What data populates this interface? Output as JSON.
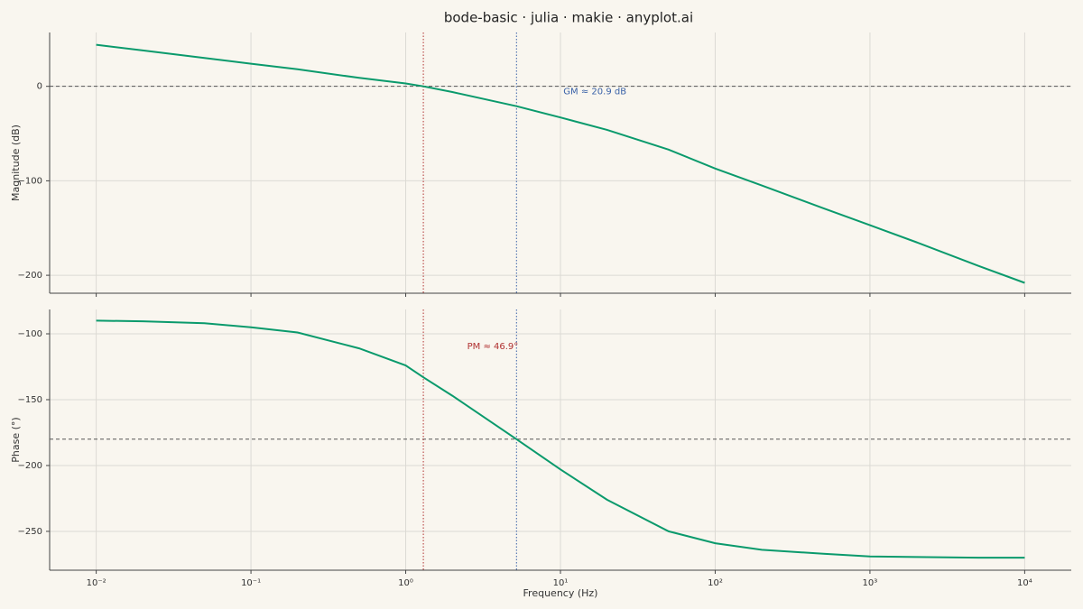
{
  "title": "bode-basic · julia · makie · anyplot.ai",
  "chart_data": [
    {
      "type": "line",
      "ylabel": "Magnitude (dB)",
      "log_x": true,
      "grid": true,
      "x": [
        0.01,
        0.02,
        0.05,
        0.1,
        0.2,
        0.5,
        1,
        1.3,
        2,
        5.2,
        10,
        20,
        50,
        100,
        200,
        500,
        1000,
        2000,
        5000,
        10000
      ],
      "series": [
        {
          "name": "Magnitude",
          "color": "#0a9a6c",
          "values": [
            44,
            38,
            30,
            24,
            18,
            9,
            3,
            0,
            -6,
            -21,
            -33,
            -46,
            -67,
            -87,
            -105,
            -129,
            -147,
            -165,
            -190,
            -208
          ]
        }
      ],
      "xlim": [
        0.005,
        20000
      ],
      "xticks": [
        0.01,
        0.1,
        1,
        10,
        100,
        1000,
        10000
      ],
      "ylim": [
        -219,
        57
      ],
      "yticks": [
        {
          "value": -200,
          "label": "−200"
        },
        {
          "value": -100,
          "label": "−100"
        },
        0
      ],
      "hline": {
        "value": 0,
        "color": "#555555"
      },
      "vlines": [
        {
          "x": 1.3,
          "color": "#b03030"
        },
        {
          "x": 5.2,
          "color": "#3a62a8"
        }
      ],
      "annotation": {
        "text": "GM ≈ 20.9 dB",
        "color": "#3a62a8"
      }
    },
    {
      "type": "line",
      "ylabel": "Phase (°)",
      "xlabel": "Frequency (Hz)",
      "log_x": true,
      "grid": true,
      "x": [
        0.01,
        0.02,
        0.05,
        0.1,
        0.2,
        0.5,
        1,
        1.3,
        2,
        5.2,
        10,
        20,
        50,
        100,
        200,
        500,
        1000,
        2000,
        5000,
        10000
      ],
      "series": [
        {
          "name": "Phase",
          "color": "#0a9a6c",
          "values": [
            -90,
            -90.5,
            -92,
            -95,
            -99,
            -111,
            -124,
            -133,
            -147,
            -180,
            -203,
            -226,
            -250,
            -259,
            -264,
            -267,
            -269,
            -269.5,
            -270,
            -270
          ]
        }
      ],
      "xlim": [
        0.005,
        20000
      ],
      "xticks": [
        {
          "value": 0.01,
          "label": "10⁻²"
        },
        {
          "value": 0.1,
          "label": "10⁻¹"
        },
        {
          "value": 1,
          "label": "10⁰"
        },
        {
          "value": 10,
          "label": "10¹"
        },
        {
          "value": 100,
          "label": "10²"
        },
        {
          "value": 1000,
          "label": "10³"
        },
        {
          "value": 10000,
          "label": "10⁴"
        }
      ],
      "ylim": [
        -279.5,
        -81.5
      ],
      "yticks": [
        {
          "value": -250,
          "label": "−250"
        },
        {
          "value": -200,
          "label": "−200"
        },
        {
          "value": -150,
          "label": "−150"
        },
        {
          "value": -100,
          "label": "−100"
        }
      ],
      "hline": {
        "value": -180,
        "color": "#555555"
      },
      "vlines": [
        {
          "x": 1.3,
          "color": "#b03030"
        },
        {
          "x": 5.2,
          "color": "#3a62a8"
        }
      ],
      "annotation": {
        "text": "PM ≈ 46.9°",
        "color": "#b03030"
      }
    }
  ]
}
